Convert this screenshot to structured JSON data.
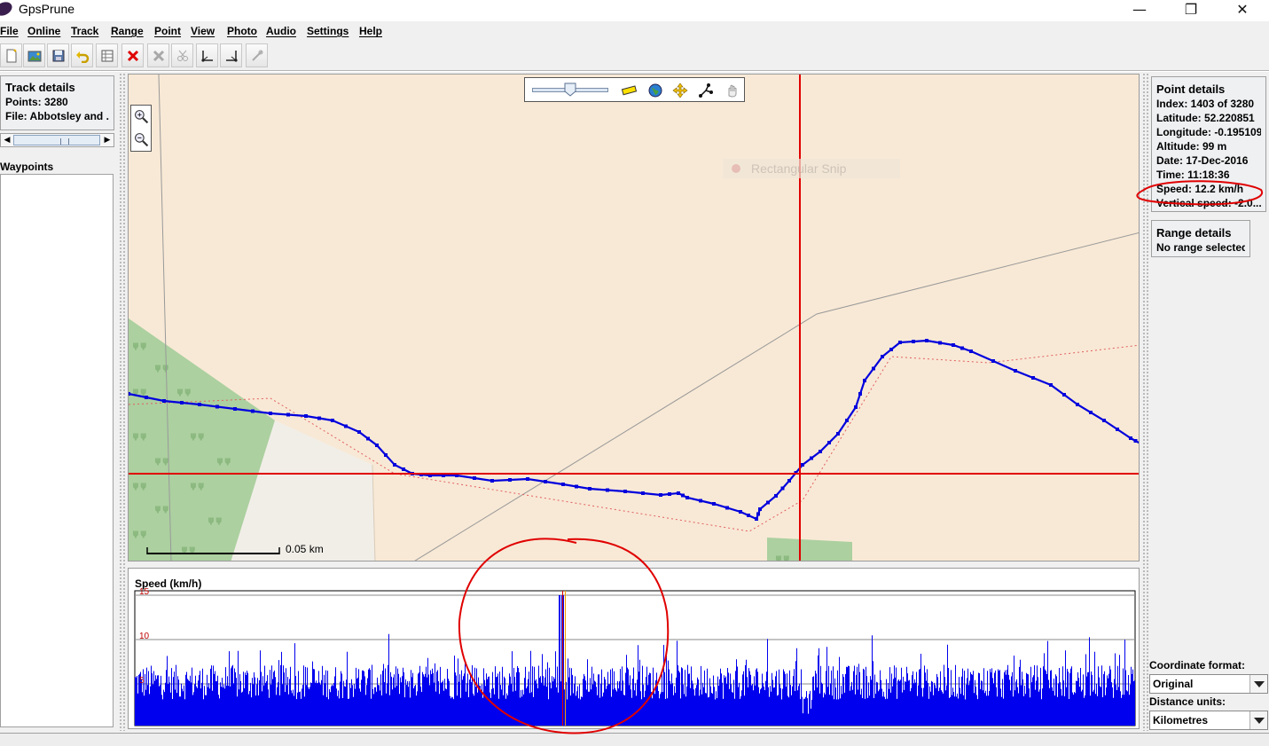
{
  "window": {
    "title": "GpsPrune",
    "minimize": "—",
    "maximize": "❐",
    "close": "✕"
  },
  "menu": [
    "File",
    "Online",
    "Track",
    "Range",
    "Point",
    "View",
    "Photo",
    "Audio",
    "Settings",
    "Help"
  ],
  "toolbar": [
    "new-file-icon",
    "open-image-icon",
    "save-icon",
    "undo-icon",
    "edit-table-icon",
    "delete-point-icon",
    "delete-range-icon",
    "cut-icon",
    "select-start-icon",
    "select-end-icon",
    "connect-icon"
  ],
  "track_details": {
    "title": "Track details",
    "points": "Points: 3280",
    "file": "File: Abbotsley and ..."
  },
  "waypoints": {
    "label": "Waypoints"
  },
  "map": {
    "scale_label": "0.05 km",
    "snip_hint": "Rectangular Snip",
    "route_color": "#0000dd",
    "cursor_color": "#e00000",
    "forest_color": "#acd0a0",
    "land_color": "#f8e9d6"
  },
  "profile": {
    "title": "Speed (km/h)",
    "bar_color": "#0000ee"
  },
  "chart_data": {
    "type": "bar",
    "title": "Speed (km/h)",
    "ylim": [
      0,
      15
    ],
    "y_ticks": [
      "15",
      "10",
      "5"
    ],
    "points_count": 3280,
    "selected_index": 1403,
    "baseline_speed_range": [
      3,
      7
    ],
    "peak_speed": 15.0,
    "selected_speed": 12.2
  },
  "point_details": {
    "title": "Point details",
    "lines": [
      "Index: 1403 of 3280",
      "Latitude: 52.220851",
      "Longitude: -0.195109",
      "Altitude: 99 m",
      "Date: 17-Dec-2016",
      "Time: 11:18:36",
      "Speed: 12.2 km/h",
      "Vertical speed: -2.0..."
    ]
  },
  "range_details": {
    "title": "Range details",
    "text": "No range selected"
  },
  "coordinate_format": {
    "label": "Coordinate format:",
    "value": "Original"
  },
  "distance_units": {
    "label": "Distance units:",
    "value": "Kilometres"
  }
}
